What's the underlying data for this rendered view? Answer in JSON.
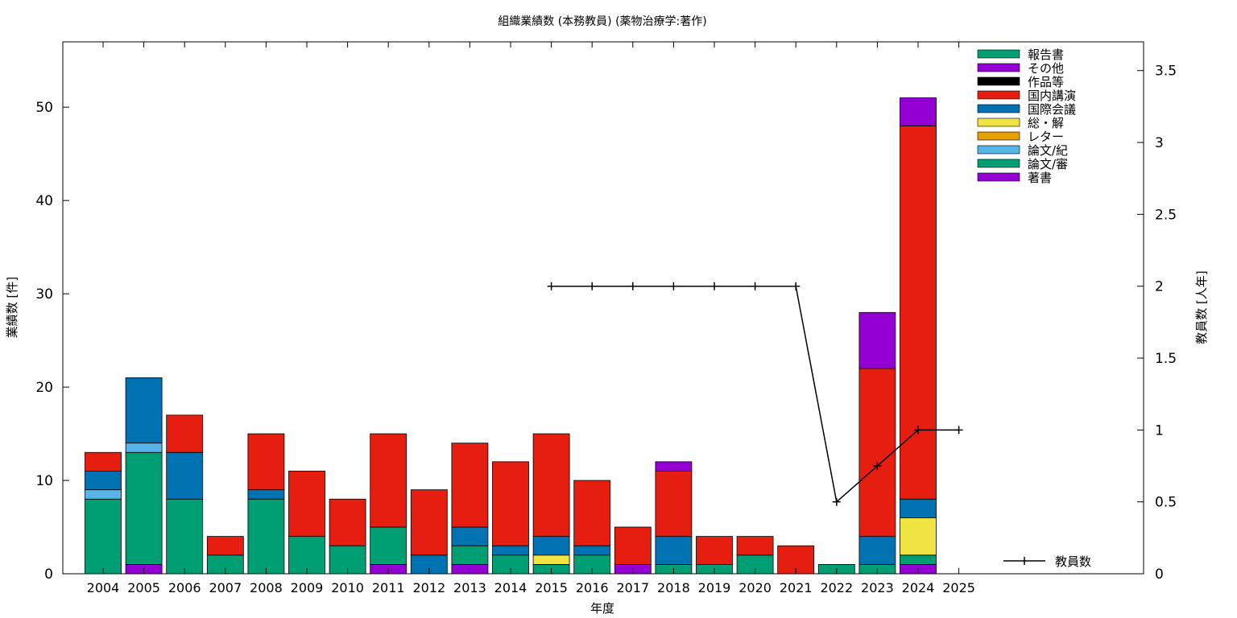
{
  "chart_data": {
    "type": "bar",
    "stacked": true,
    "title": "組織業績数 (本務教員) (薬物治療学:著作)",
    "xlabel": "年度",
    "ylabel": "業績数 [件]",
    "y2label": "教員数 [人年]",
    "categories": [
      "2004",
      "2005",
      "2006",
      "2007",
      "2008",
      "2009",
      "2010",
      "2011",
      "2012",
      "2013",
      "2014",
      "2015",
      "2016",
      "2017",
      "2018",
      "2019",
      "2020",
      "2021",
      "2022",
      "2023",
      "2024",
      "2025"
    ],
    "ylim": [
      0,
      57
    ],
    "yticks": [
      0,
      10,
      20,
      30,
      40,
      50
    ],
    "y2lim": [
      0,
      3.7
    ],
    "y2ticks": [
      "0",
      "0.5",
      "1",
      "1.5",
      "2",
      "2.5",
      "3",
      "3.5"
    ],
    "legend_position": "top-right",
    "stack_order": [
      "著書",
      "論文/審",
      "論文/紀",
      "レター",
      "総・解",
      "国際会議",
      "国内講演",
      "作品等",
      "その他",
      "報告書"
    ],
    "series": [
      {
        "name": "報告書",
        "color": "#009e73",
        "values": [
          0,
          0,
          0,
          0,
          0,
          0,
          0,
          0,
          0,
          0,
          0,
          0,
          0,
          0,
          0,
          0,
          0,
          0,
          0,
          0,
          0,
          0
        ]
      },
      {
        "name": "その他",
        "color": "#9400d3",
        "values": [
          0,
          0,
          0,
          0,
          0,
          0,
          0,
          0,
          0,
          0,
          0,
          0,
          0,
          0,
          1,
          0,
          0,
          0,
          0,
          6,
          3,
          0
        ]
      },
      {
        "name": "作品等",
        "color": "#000000",
        "values": [
          0,
          0,
          0,
          0,
          0,
          0,
          0,
          0,
          0,
          0,
          0,
          0,
          0,
          0,
          0,
          0,
          0,
          0,
          0,
          0,
          0,
          0
        ]
      },
      {
        "name": "国内講演",
        "color": "#e51e10",
        "values": [
          2,
          0,
          4,
          2,
          6,
          7,
          5,
          10,
          7,
          9,
          9,
          11,
          7,
          4,
          7,
          3,
          2,
          3,
          0,
          18,
          40,
          0
        ]
      },
      {
        "name": "国際会議",
        "color": "#0072b2",
        "values": [
          2,
          7,
          5,
          0,
          1,
          0,
          0,
          0,
          2,
          2,
          1,
          2,
          1,
          0,
          3,
          0,
          0,
          0,
          0,
          3,
          2,
          0
        ]
      },
      {
        "name": "総・解",
        "color": "#f0e442",
        "values": [
          0,
          0,
          0,
          0,
          0,
          0,
          0,
          0,
          0,
          0,
          0,
          1,
          0,
          0,
          0,
          0,
          0,
          0,
          0,
          0,
          4,
          0
        ]
      },
      {
        "name": "レター",
        "color": "#e69f00",
        "values": [
          0,
          0,
          0,
          0,
          0,
          0,
          0,
          0,
          0,
          0,
          0,
          0,
          0,
          0,
          0,
          0,
          0,
          0,
          0,
          0,
          0,
          0
        ]
      },
      {
        "name": "論文/紀",
        "color": "#56b4e9",
        "values": [
          1,
          1,
          0,
          0,
          0,
          0,
          0,
          0,
          0,
          0,
          0,
          0,
          0,
          0,
          0,
          0,
          0,
          0,
          0,
          0,
          0,
          0
        ]
      },
      {
        "name": "論文/審",
        "color": "#009e73",
        "values": [
          8,
          12,
          8,
          2,
          8,
          4,
          3,
          4,
          0,
          2,
          2,
          1,
          2,
          0,
          1,
          1,
          2,
          0,
          1,
          1,
          1,
          0
        ]
      },
      {
        "name": "著書",
        "color": "#9400d3",
        "values": [
          0,
          1,
          0,
          0,
          0,
          0,
          0,
          1,
          0,
          1,
          0,
          0,
          0,
          1,
          0,
          0,
          0,
          0,
          0,
          0,
          1,
          0
        ]
      }
    ],
    "line_series": {
      "name": "教員数",
      "axis": "y2",
      "color": "#000000",
      "points": [
        {
          "x": "2015",
          "y": 2
        },
        {
          "x": "2016",
          "y": 2
        },
        {
          "x": "2017",
          "y": 2
        },
        {
          "x": "2018",
          "y": 2
        },
        {
          "x": "2019",
          "y": 2
        },
        {
          "x": "2020",
          "y": 2
        },
        {
          "x": "2021",
          "y": 2
        },
        {
          "x": "2022",
          "y": 0.5
        },
        {
          "x": "2023",
          "y": 0.75
        },
        {
          "x": "2024",
          "y": 1
        },
        {
          "x": "2025",
          "y": 1
        }
      ]
    }
  }
}
